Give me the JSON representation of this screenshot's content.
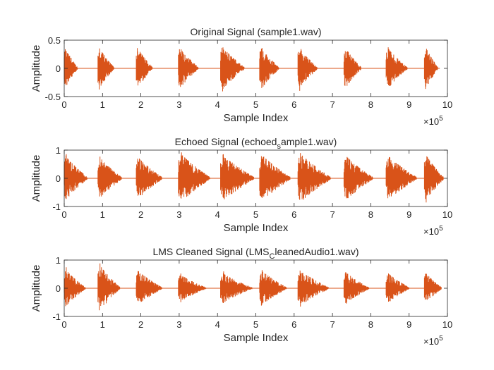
{
  "chart_data": [
    {
      "type": "line",
      "title": "Original Signal (sample1.wav)",
      "title_main": "Original Signal (sample1.wav)",
      "title_sub": "",
      "title_rest": "",
      "xlabel": "Sample Index",
      "ylabel": "Amplitude",
      "xlim": [
        0,
        10
      ],
      "ylim": [
        -0.5,
        0.5
      ],
      "x_exponent": "×10",
      "x_exponent_power": "5",
      "xticks": [
        "0",
        "1",
        "2",
        "3",
        "4",
        "5",
        "6",
        "7",
        "8",
        "9",
        "10"
      ],
      "yticks": [
        "-0.5",
        "0",
        "0.5"
      ],
      "ytick_values": [
        -0.5,
        0,
        0.5
      ],
      "color": "#D95319",
      "data_end": 9.8,
      "segments": [
        {
          "start": 0.0,
          "end": 0.35,
          "peak": 0.42
        },
        {
          "start": 0.88,
          "end": 1.3,
          "peak": 0.42
        },
        {
          "start": 1.88,
          "end": 2.3,
          "peak": 0.42
        },
        {
          "start": 2.98,
          "end": 3.5,
          "peak": 0.42
        },
        {
          "start": 4.08,
          "end": 4.7,
          "peak": 0.44
        },
        {
          "start": 5.1,
          "end": 5.6,
          "peak": 0.44
        },
        {
          "start": 6.1,
          "end": 6.6,
          "peak": 0.44
        },
        {
          "start": 7.3,
          "end": 7.75,
          "peak": 0.42
        },
        {
          "start": 8.4,
          "end": 8.95,
          "peak": 0.42
        },
        {
          "start": 9.4,
          "end": 9.75,
          "peak": 0.44
        }
      ]
    },
    {
      "type": "line",
      "title": "Echoed Signal (echoed_sample1.wav)",
      "title_main": "Echoed Signal (echoed",
      "title_sub": "s",
      "title_rest": "ample1.wav)",
      "xlabel": "Sample Index",
      "ylabel": "Amplitude",
      "xlim": [
        0,
        10
      ],
      "ylim": [
        -1,
        1
      ],
      "x_exponent": "×10",
      "x_exponent_power": "5",
      "xticks": [
        "0",
        "1",
        "2",
        "3",
        "4",
        "5",
        "6",
        "7",
        "8",
        "9",
        "10"
      ],
      "yticks": [
        "-1",
        "0",
        "1"
      ],
      "ytick_values": [
        -1,
        0,
        1
      ],
      "color": "#D95319",
      "data_end": 9.9,
      "segments": [
        {
          "start": 0.0,
          "end": 0.6,
          "peak": 0.9
        },
        {
          "start": 0.88,
          "end": 1.5,
          "peak": 0.85
        },
        {
          "start": 1.88,
          "end": 2.55,
          "peak": 0.85
        },
        {
          "start": 2.98,
          "end": 3.8,
          "peak": 1.0
        },
        {
          "start": 4.08,
          "end": 4.95,
          "peak": 0.95
        },
        {
          "start": 5.1,
          "end": 5.9,
          "peak": 0.95
        },
        {
          "start": 6.1,
          "end": 6.95,
          "peak": 1.0
        },
        {
          "start": 7.3,
          "end": 8.05,
          "peak": 0.9
        },
        {
          "start": 8.4,
          "end": 9.2,
          "peak": 0.9
        },
        {
          "start": 9.4,
          "end": 9.9,
          "peak": 0.95
        }
      ]
    },
    {
      "type": "line",
      "title": "LMS Cleaned Signal (LMS_CleanedAudio1.wav)",
      "title_main": "LMS Cleaned Signal (LMS",
      "title_sub": "C",
      "title_rest": "leanedAudio1.wav)",
      "xlabel": "Sample Index",
      "ylabel": "Amplitude",
      "xlim": [
        0,
        10
      ],
      "ylim": [
        -1,
        1
      ],
      "x_exponent": "×10",
      "x_exponent_power": "5",
      "xticks": [
        "0",
        "1",
        "2",
        "3",
        "4",
        "5",
        "6",
        "7",
        "8",
        "9",
        "10"
      ],
      "yticks": [
        "-1",
        "0",
        "1"
      ],
      "ytick_values": [
        -1,
        0,
        1
      ],
      "color": "#D95319",
      "data_end": 9.85,
      "segments": [
        {
          "start": 0.0,
          "end": 0.55,
          "peak": 0.75
        },
        {
          "start": 0.88,
          "end": 1.45,
          "peak": 0.95
        },
        {
          "start": 1.88,
          "end": 2.55,
          "peak": 0.7
        },
        {
          "start": 2.98,
          "end": 3.7,
          "peak": 0.55
        },
        {
          "start": 4.08,
          "end": 4.9,
          "peak": 0.6
        },
        {
          "start": 5.1,
          "end": 5.8,
          "peak": 0.72
        },
        {
          "start": 6.1,
          "end": 6.9,
          "peak": 0.72
        },
        {
          "start": 7.3,
          "end": 7.95,
          "peak": 0.65
        },
        {
          "start": 8.4,
          "end": 9.0,
          "peak": 0.62
        },
        {
          "start": 9.4,
          "end": 9.85,
          "peak": 0.62
        }
      ]
    }
  ]
}
